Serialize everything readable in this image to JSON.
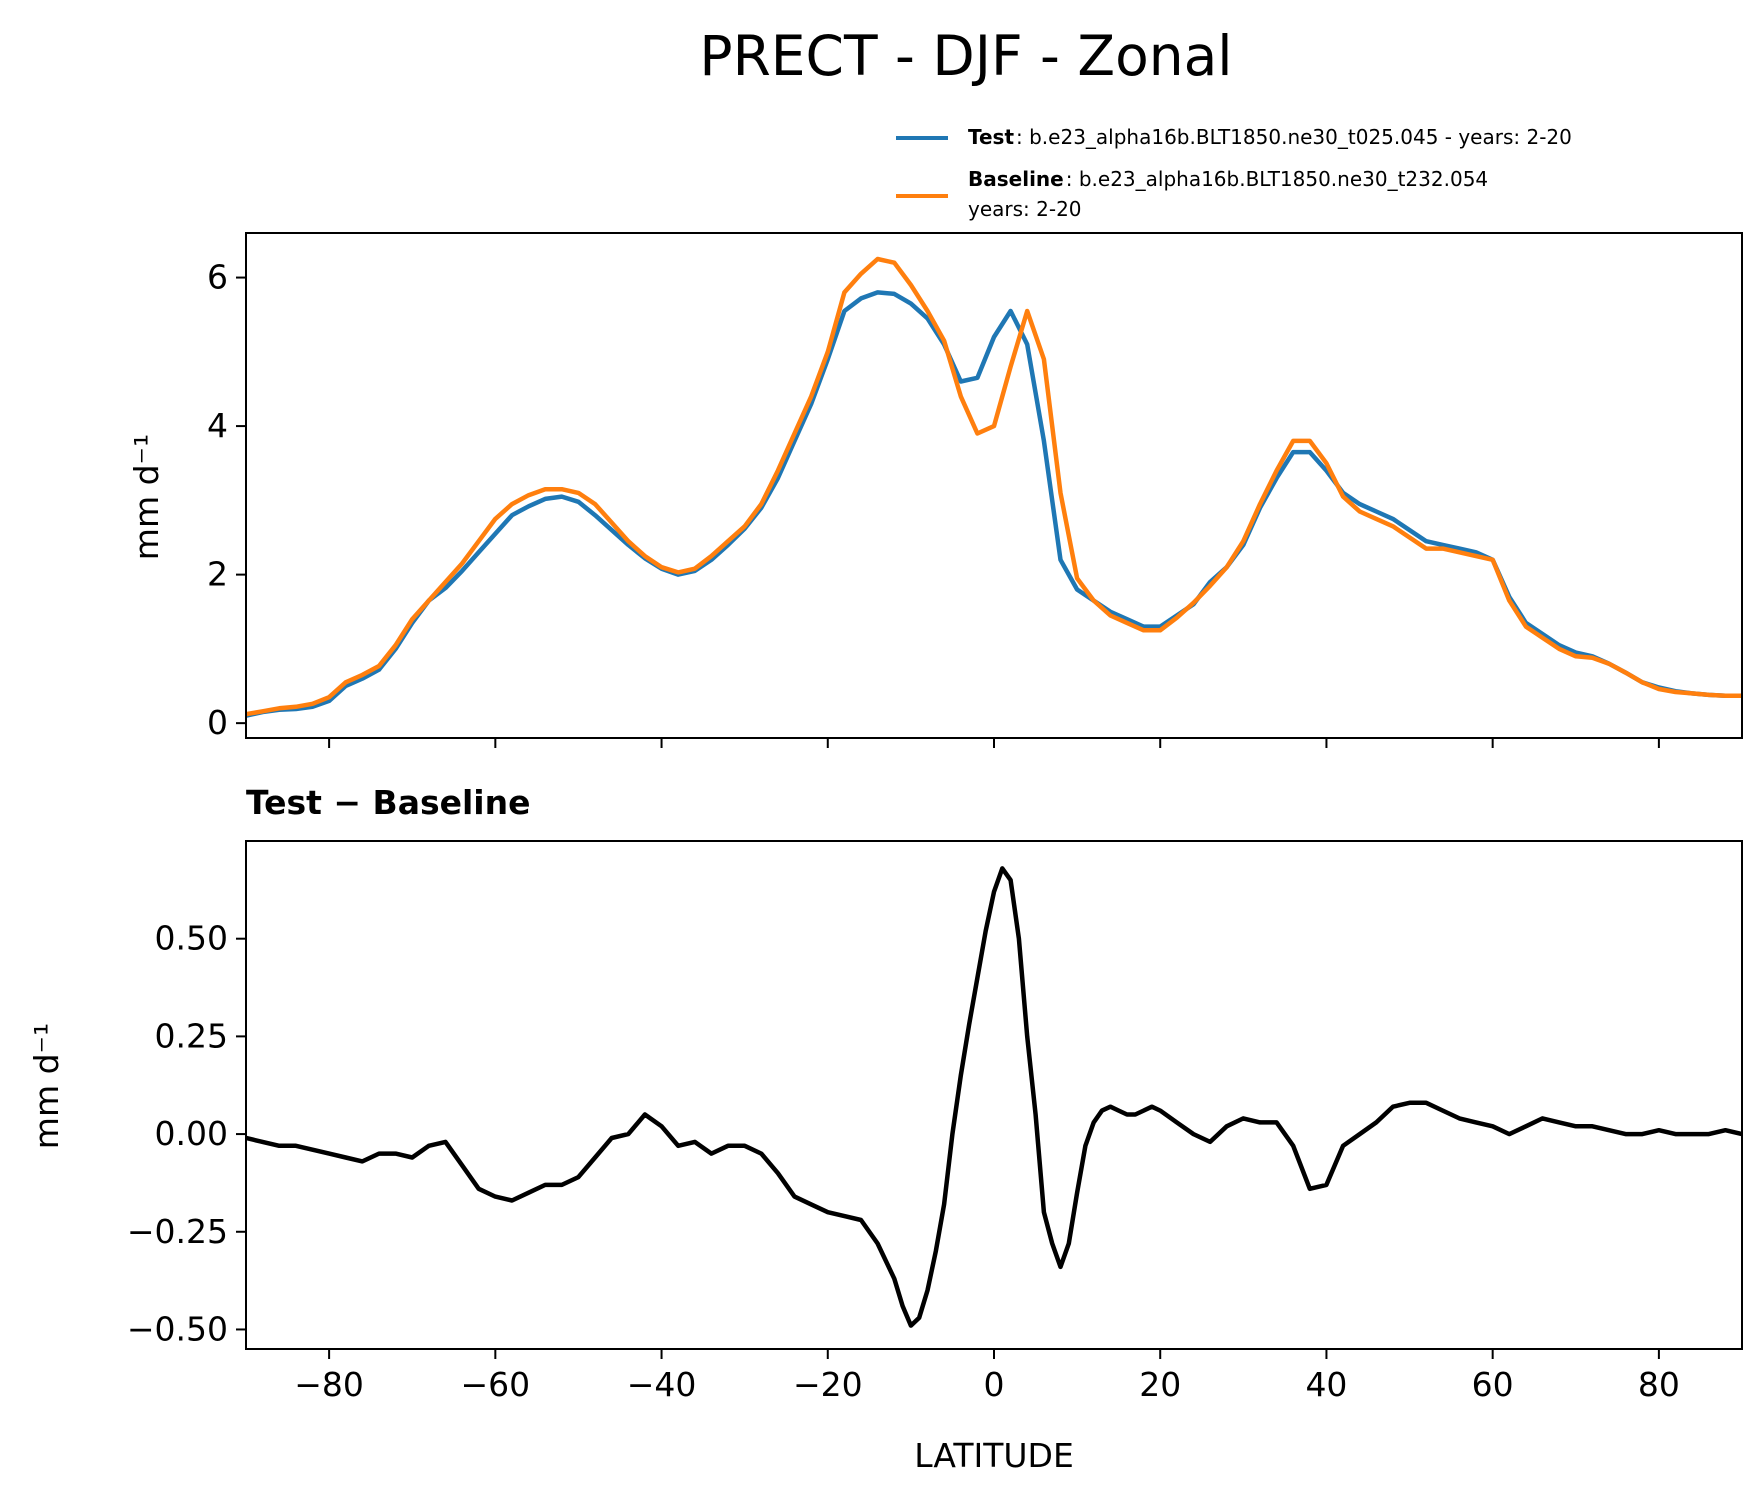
{
  "title": "PRECT - DJF - Zonal",
  "legend": {
    "test_label": "Test",
    "test_text": ": b.e23_alpha16b.BLT1850.ne30_t025.045 - years: 2-20",
    "baseline_label": "Baseline",
    "baseline_text": ": b.e23_alpha16b.BLT1850.ne30_t232.054",
    "baseline_years": "years: 2-20"
  },
  "colors": {
    "test": "#1f77b4",
    "baseline": "#ff7f0e",
    "diff": "#000000"
  },
  "chart_data": [
    {
      "type": "line",
      "ylabel": "mm d⁻¹",
      "xlim": [
        -90,
        90
      ],
      "ylim": [
        -0.2,
        6.6
      ],
      "yticks": [
        0,
        2,
        4,
        6
      ],
      "ytick_labels": [
        "0",
        "2",
        "4",
        "6"
      ],
      "xticks": [
        -80,
        -60,
        -40,
        -20,
        0,
        20,
        40,
        60,
        80
      ],
      "series": [
        {
          "name": "Test",
          "x": [
            -90,
            -88,
            -86,
            -84,
            -82,
            -80,
            -78,
            -76,
            -74,
            -72,
            -70,
            -68,
            -66,
            -64,
            -62,
            -60,
            -58,
            -56,
            -54,
            -52,
            -50,
            -48,
            -46,
            -44,
            -42,
            -40,
            -38,
            -36,
            -34,
            -32,
            -30,
            -28,
            -26,
            -24,
            -22,
            -20,
            -18,
            -16,
            -14,
            -12,
            -10,
            -8,
            -6,
            -4,
            -2,
            0,
            2,
            4,
            6,
            8,
            10,
            12,
            14,
            16,
            18,
            20,
            22,
            24,
            26,
            28,
            30,
            32,
            34,
            36,
            38,
            40,
            42,
            44,
            46,
            48,
            50,
            52,
            54,
            56,
            58,
            60,
            62,
            64,
            66,
            68,
            70,
            72,
            74,
            76,
            78,
            80,
            82,
            84,
            86,
            88,
            90
          ],
          "values": [
            0.1,
            0.15,
            0.18,
            0.19,
            0.22,
            0.3,
            0.5,
            0.6,
            0.72,
            1.0,
            1.35,
            1.65,
            1.82,
            2.05,
            2.3,
            2.55,
            2.8,
            2.92,
            3.02,
            3.05,
            2.98,
            2.8,
            2.6,
            2.4,
            2.22,
            2.08,
            2.0,
            2.05,
            2.2,
            2.4,
            2.62,
            2.9,
            3.3,
            3.8,
            4.3,
            4.9,
            5.55,
            5.72,
            5.8,
            5.78,
            5.65,
            5.45,
            5.1,
            4.6,
            4.65,
            5.2,
            5.55,
            5.1,
            3.8,
            2.2,
            1.8,
            1.65,
            1.5,
            1.4,
            1.3,
            1.3,
            1.45,
            1.6,
            1.9,
            2.1,
            2.4,
            2.9,
            3.3,
            3.65,
            3.65,
            3.4,
            3.1,
            2.95,
            2.85,
            2.75,
            2.6,
            2.45,
            2.4,
            2.35,
            2.3,
            2.2,
            1.7,
            1.35,
            1.2,
            1.05,
            0.95,
            0.9,
            0.8,
            0.68,
            0.55,
            0.48,
            0.43,
            0.4,
            0.38,
            0.37,
            0.37
          ]
        },
        {
          "name": "Baseline",
          "x": [
            -90,
            -88,
            -86,
            -84,
            -82,
            -80,
            -78,
            -76,
            -74,
            -72,
            -70,
            -68,
            -66,
            -64,
            -62,
            -60,
            -58,
            -56,
            -54,
            -52,
            -50,
            -48,
            -46,
            -44,
            -42,
            -40,
            -38,
            -36,
            -34,
            -32,
            -30,
            -28,
            -26,
            -24,
            -22,
            -20,
            -18,
            -16,
            -14,
            -12,
            -10,
            -8,
            -6,
            -4,
            -2,
            0,
            2,
            4,
            6,
            8,
            10,
            12,
            14,
            16,
            18,
            20,
            22,
            24,
            26,
            28,
            30,
            32,
            34,
            36,
            38,
            40,
            42,
            44,
            46,
            48,
            50,
            52,
            54,
            56,
            58,
            60,
            62,
            64,
            66,
            68,
            70,
            72,
            74,
            76,
            78,
            80,
            82,
            84,
            86,
            88,
            90
          ],
          "values": [
            0.12,
            0.16,
            0.2,
            0.22,
            0.26,
            0.35,
            0.55,
            0.65,
            0.77,
            1.05,
            1.4,
            1.65,
            1.9,
            2.15,
            2.45,
            2.75,
            2.95,
            3.07,
            3.15,
            3.15,
            3.1,
            2.95,
            2.7,
            2.45,
            2.25,
            2.1,
            2.03,
            2.08,
            2.25,
            2.45,
            2.65,
            2.95,
            3.4,
            3.9,
            4.4,
            5.0,
            5.8,
            6.05,
            6.25,
            6.2,
            5.9,
            5.55,
            5.15,
            4.4,
            3.9,
            4.0,
            4.8,
            5.55,
            4.9,
            3.1,
            1.95,
            1.65,
            1.45,
            1.35,
            1.25,
            1.25,
            1.42,
            1.62,
            1.85,
            2.1,
            2.45,
            2.95,
            3.4,
            3.8,
            3.8,
            3.5,
            3.05,
            2.85,
            2.75,
            2.65,
            2.5,
            2.35,
            2.35,
            2.3,
            2.25,
            2.2,
            1.65,
            1.3,
            1.15,
            1.0,
            0.9,
            0.88,
            0.8,
            0.68,
            0.55,
            0.46,
            0.42,
            0.4,
            0.38,
            0.37,
            0.37
          ]
        }
      ]
    },
    {
      "type": "line",
      "title": "Test − Baseline",
      "xlabel": "LATITUDE",
      "ylabel": "mm d⁻¹",
      "xlim": [
        -90,
        90
      ],
      "ylim": [
        -0.55,
        0.75
      ],
      "yticks": [
        -0.5,
        -0.25,
        0,
        0.25,
        0.5
      ],
      "ytick_labels": [
        "−0.50",
        "−0.25",
        "0.00",
        "0.25",
        "0.50"
      ],
      "xticks": [
        -80,
        -60,
        -40,
        -20,
        0,
        20,
        40,
        60,
        80
      ],
      "xtick_labels": [
        "−80",
        "−60",
        "−40",
        "−20",
        "0",
        "20",
        "40",
        "60",
        "80"
      ],
      "series": [
        {
          "name": "Test − Baseline",
          "x": [
            -90,
            -88,
            -86,
            -84,
            -82,
            -80,
            -78,
            -76,
            -74,
            -72,
            -70,
            -68,
            -66,
            -64,
            -62,
            -60,
            -58,
            -56,
            -54,
            -52,
            -50,
            -48,
            -46,
            -44,
            -42,
            -40,
            -38,
            -36,
            -34,
            -32,
            -30,
            -28,
            -26,
            -24,
            -22,
            -20,
            -18,
            -16,
            -14,
            -12,
            -11,
            -10,
            -9,
            -8,
            -7,
            -6,
            -5,
            -4,
            -3,
            -2,
            -1,
            0,
            1,
            2,
            3,
            4,
            5,
            6,
            7,
            8,
            9,
            10,
            11,
            12,
            13,
            14,
            15,
            16,
            17,
            18,
            19,
            20,
            22,
            24,
            26,
            28,
            30,
            32,
            34,
            36,
            38,
            40,
            42,
            44,
            46,
            48,
            50,
            52,
            54,
            56,
            58,
            60,
            62,
            64,
            66,
            68,
            70,
            72,
            74,
            76,
            78,
            80,
            82,
            84,
            86,
            88,
            90
          ],
          "values": [
            -0.01,
            -0.02,
            -0.03,
            -0.03,
            -0.04,
            -0.05,
            -0.06,
            -0.07,
            -0.05,
            -0.05,
            -0.06,
            -0.03,
            -0.02,
            -0.08,
            -0.14,
            -0.16,
            -0.17,
            -0.15,
            -0.13,
            -0.13,
            -0.11,
            -0.06,
            -0.01,
            0.0,
            0.05,
            0.02,
            -0.03,
            -0.02,
            -0.05,
            -0.03,
            -0.03,
            -0.05,
            -0.1,
            -0.16,
            -0.18,
            -0.2,
            -0.21,
            -0.22,
            -0.28,
            -0.37,
            -0.44,
            -0.49,
            -0.47,
            -0.4,
            -0.3,
            -0.18,
            0.0,
            0.15,
            0.28,
            0.4,
            0.52,
            0.62,
            0.68,
            0.65,
            0.5,
            0.25,
            0.05,
            -0.2,
            -0.28,
            -0.34,
            -0.28,
            -0.15,
            -0.03,
            0.03,
            0.06,
            0.07,
            0.06,
            0.05,
            0.05,
            0.06,
            0.07,
            0.06,
            0.03,
            0.0,
            -0.02,
            0.02,
            0.04,
            0.03,
            0.03,
            -0.03,
            -0.14,
            -0.13,
            -0.03,
            0.0,
            0.03,
            0.07,
            0.08,
            0.08,
            0.06,
            0.04,
            0.03,
            0.02,
            0.0,
            0.02,
            0.04,
            0.03,
            0.02,
            0.02,
            0.01,
            0.0,
            0.0,
            0.01,
            0.0,
            0.0,
            0.0,
            0.01,
            0.0
          ]
        }
      ]
    }
  ]
}
